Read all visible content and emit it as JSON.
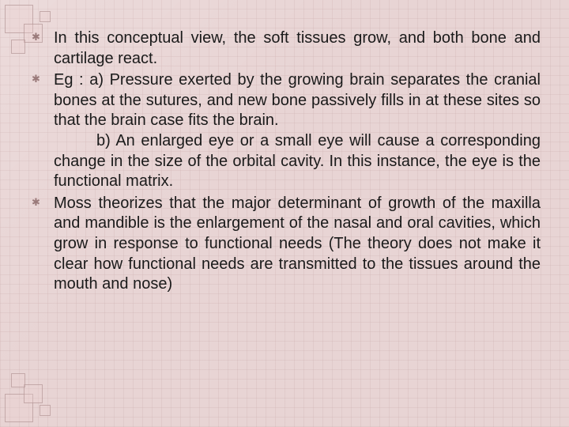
{
  "slide": {
    "background_color": "#e8d4d4",
    "grid_color": "#c8aaaa",
    "text_color": "#1a1a1a",
    "bullet_color": "#9a7a7a",
    "font_family": "Arial",
    "font_size_pt": 20,
    "line_height": 1.28,
    "text_align": "justify",
    "bullets": [
      {
        "text": "In this conceptual view, the soft tissues grow, and both bone and cartilage react."
      },
      {
        "lead": "Eg : a) ",
        "text_a": "Pressure exerted by the growing brain separates the cranial bones at the sutures, and new bone passively fills in at these sites so that the brain case fits the brain.",
        "sub_lead": "b) ",
        "text_b": "An enlarged eye or a small eye will cause a corresponding change in the size of the orbital cavity. In this instance, the eye is the functional matrix."
      },
      {
        "text": "Moss theorizes that the major determinant of growth of the maxilla and mandible is the enlargement of the nasal and oral cavities, which grow in response to functional needs (The theory does not make it clear how functional needs are transmitted to the tissues around the mouth and nose)"
      }
    ]
  }
}
